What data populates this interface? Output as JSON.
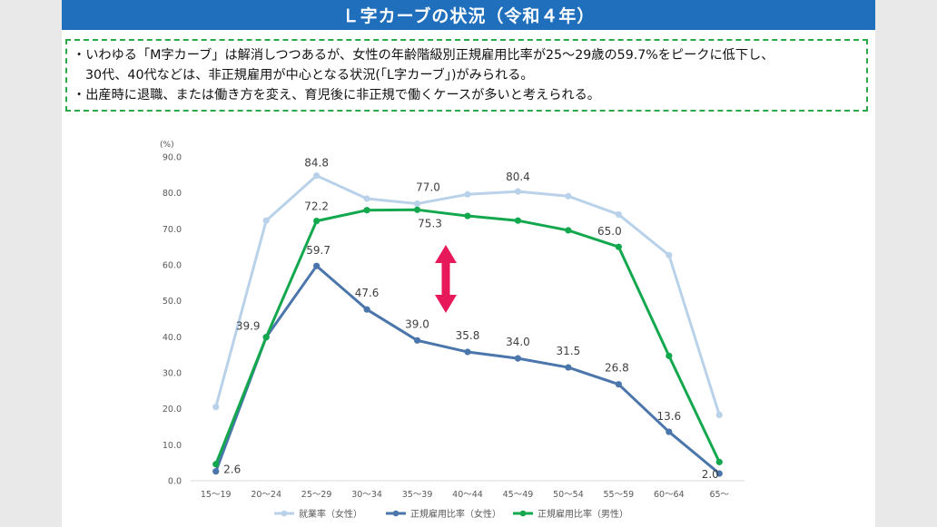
{
  "banner": {
    "title": "Ｌ字カーブの状況（令和４年）"
  },
  "notes": {
    "line1": "・いわゆる「M字カーブ」は解消しつつあるが、女性の年齢階級別正規雇用比率が25～29歳の59.7%をピークに低下し、",
    "line2": "30代、40代などは、非正規雇用が中心となる状況(「L字カーブ」)がみられる。",
    "line3": "・出産時に退職、または働き方を変え、育児後に非正規で働くケースが多いと考えられる。"
  },
  "chart_data": {
    "type": "line",
    "unit_label": "(%)",
    "categories": [
      "15～19",
      "20～24",
      "25～29",
      "30～34",
      "35～39",
      "40～44",
      "45～49",
      "50～54",
      "55～59",
      "60～64",
      "65～"
    ],
    "ylim": [
      0,
      90
    ],
    "yticks": [
      "0.0",
      "10.0",
      "20.0",
      "30.0",
      "40.0",
      "50.0",
      "60.0",
      "70.0",
      "80.0",
      "90.0"
    ],
    "grid": false,
    "legend_position": "bottom",
    "series": [
      {
        "name": "就業率（女性）",
        "color": "#b9d2e9",
        "values": [
          20.5,
          72.3,
          84.8,
          78.4,
          77.0,
          79.6,
          80.4,
          79.1,
          74.0,
          62.7,
          18.3
        ],
        "labels": {
          "2": "84.8",
          "4": "77.0",
          "6": "80.4"
        }
      },
      {
        "name": "正規雇用比率（女性）",
        "color": "#4a76ab",
        "values": [
          2.6,
          39.9,
          59.7,
          47.6,
          39.0,
          35.8,
          34.0,
          31.5,
          26.8,
          13.6,
          2.0
        ],
        "labels": {
          "0": "2.6",
          "1": "39.9",
          "2": "59.7",
          "3": "47.6",
          "4": "39.0",
          "5": "35.8",
          "6": "34.0",
          "7": "31.5",
          "8": "26.8",
          "9": "13.6",
          "10": "2.0"
        }
      },
      {
        "name": "正規雇用比率（男性）",
        "color": "#13a84e",
        "values": [
          4.6,
          39.9,
          72.2,
          75.2,
          75.3,
          73.6,
          72.3,
          69.6,
          65.0,
          34.7,
          5.2
        ],
        "labels": {
          "2": "72.2",
          "4": "75.3",
          "8": "65.0"
        }
      }
    ],
    "arrow_color": "#e8195a"
  }
}
